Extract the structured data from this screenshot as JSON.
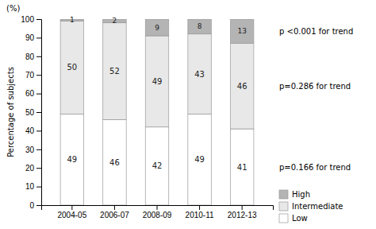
{
  "chart_data": {
    "type": "bar",
    "stacked": true,
    "categories": [
      "2004-05",
      "2006-07",
      "2008-09",
      "2010-11",
      "2012-13"
    ],
    "series": [
      {
        "name": "Low",
        "color": "#ffffff",
        "values": [
          49,
          46,
          42,
          49,
          41
        ]
      },
      {
        "name": "Intermediate",
        "color": "#e8e8e8",
        "values": [
          50,
          52,
          49,
          43,
          46
        ]
      },
      {
        "name": "High",
        "color": "#b4b4b4",
        "values": [
          1,
          2,
          9,
          8,
          13
        ]
      }
    ],
    "ylabel": "Percentage of subjects",
    "annotations": [
      "(%)",
      "p <0.001 for trend",
      "p=0.286 for trend",
      "p=0.166 for trend"
    ],
    "ylim": [
      0,
      100
    ],
    "yticks": [
      0,
      10,
      20,
      30,
      40,
      50,
      60,
      70,
      80,
      90,
      100
    ],
    "grid": false,
    "legend": "bottom-right",
    "data_labels": true
  }
}
